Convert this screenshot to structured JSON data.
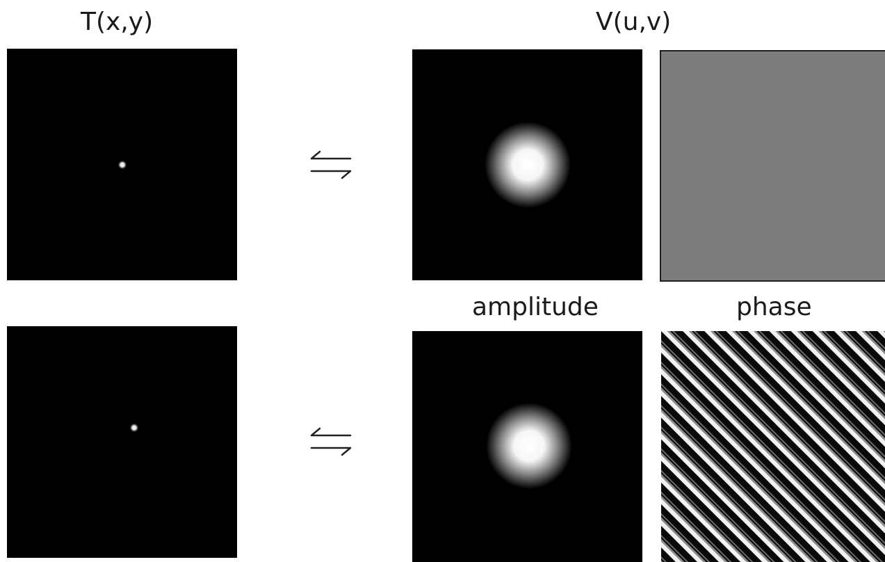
{
  "headings": {
    "spatial": "T(x,y)",
    "frequency": "V(u,v)"
  },
  "column_labels": {
    "amplitude": "amplitude",
    "phase": "phase"
  },
  "rows": [
    {
      "name": "centered-source",
      "amplitude_view": "gaussian-blob",
      "phase_view": "uniform-gray"
    },
    {
      "name": "offset-source",
      "amplitude_view": "gaussian-blob",
      "phase_view": "diagonal-fringes"
    }
  ],
  "icons": {
    "transform": "bidirectional-harpoon-arrows"
  },
  "colors": {
    "panel_background": "#000000",
    "uniform_phase_gray": "#7d7d7d",
    "label_text": "#1a1a1a"
  }
}
